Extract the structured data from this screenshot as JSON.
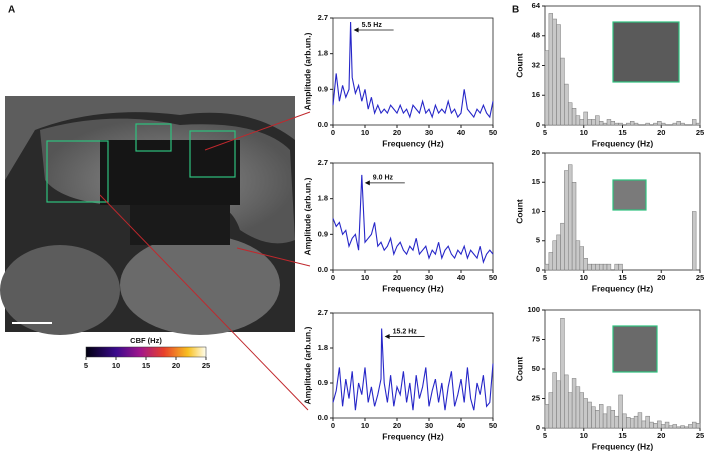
{
  "panels": [
    "A",
    "B"
  ],
  "colorbar": {
    "label": "CBF (Hz)",
    "lim": [
      5,
      25
    ],
    "ticks": [
      5,
      10,
      15,
      20,
      25
    ]
  },
  "chart_data": [
    {
      "type": "line",
      "xlabel": "Frequency (Hz)",
      "ylabel": "Amplitude (arb.un.)",
      "color": "#2626c8",
      "annotation": "5.5 Hz",
      "xlim": [
        0,
        50
      ],
      "xticks": [
        0,
        10,
        20,
        30,
        40,
        50
      ],
      "ylim": [
        0,
        2.7
      ],
      "yticks": [
        {
          "value": 0,
          "label": "0.0"
        },
        0.9,
        1.8,
        2.7
      ],
      "x": [
        0,
        1,
        2,
        3,
        4,
        5,
        5.5,
        6,
        7,
        8,
        9,
        10,
        11,
        12,
        13,
        14,
        15,
        16,
        17,
        18,
        19,
        20,
        21,
        22,
        23,
        24,
        25,
        26,
        27,
        28,
        29,
        30,
        31,
        32,
        33,
        34,
        35,
        36,
        37,
        38,
        39,
        40,
        41,
        42,
        43,
        44,
        45,
        46,
        47,
        48,
        49,
        50
      ],
      "values": [
        0.5,
        1.3,
        0.6,
        1.0,
        0.7,
        0.9,
        2.6,
        1.2,
        0.8,
        1.0,
        0.6,
        0.9,
        0.4,
        0.7,
        0.3,
        0.5,
        0.3,
        0.4,
        0.3,
        0.5,
        0.4,
        0.3,
        0.5,
        0.3,
        0.4,
        0.2,
        0.5,
        0.4,
        0.3,
        0.6,
        0.3,
        0.4,
        0.2,
        0.5,
        0.3,
        0.4,
        0.3,
        0.6,
        0.3,
        0.4,
        0.2,
        0.3,
        0.9,
        0.4,
        0.3,
        0.2,
        0.4,
        0.3,
        0.5,
        0.3,
        0.2,
        0.6
      ]
    },
    {
      "type": "line",
      "xlabel": "Frequency (Hz)",
      "ylabel": "Amplitude (arb.un.)",
      "color": "#2626c8",
      "annotation": "9.0 Hz",
      "xlim": [
        0,
        50
      ],
      "xticks": [
        0,
        10,
        20,
        30,
        40,
        50
      ],
      "ylim": [
        0,
        2.7
      ],
      "yticks": [
        {
          "value": 0,
          "label": "0.0"
        },
        0.9,
        1.8,
        2.7
      ],
      "x": [
        0,
        1,
        2,
        3,
        4,
        5,
        6,
        7,
        8,
        9,
        10,
        11,
        12,
        13,
        14,
        15,
        16,
        17,
        18,
        19,
        20,
        21,
        22,
        23,
        24,
        25,
        26,
        27,
        28,
        29,
        30,
        31,
        32,
        33,
        34,
        35,
        36,
        37,
        38,
        39,
        40,
        41,
        42,
        43,
        44,
        45,
        46,
        47,
        48,
        49,
        50
      ],
      "values": [
        1.3,
        1.1,
        1.2,
        0.9,
        1.0,
        0.6,
        0.8,
        0.9,
        0.5,
        2.4,
        0.7,
        0.8,
        0.9,
        1.2,
        0.6,
        0.7,
        0.5,
        0.6,
        0.8,
        0.4,
        0.6,
        0.7,
        0.5,
        0.4,
        0.6,
        0.5,
        0.8,
        0.4,
        0.5,
        0.6,
        0.3,
        0.5,
        0.4,
        0.7,
        0.3,
        0.5,
        0.6,
        0.4,
        0.3,
        0.5,
        0.4,
        0.6,
        0.3,
        0.5,
        0.4,
        0.3,
        0.6,
        0.2,
        0.4,
        0.5,
        0.4
      ]
    },
    {
      "type": "line",
      "xlabel": "Frequency (Hz)",
      "ylabel": "Amplitude (arb.un.)",
      "color": "#2626c8",
      "annotation": "15.2 Hz",
      "xlim": [
        0,
        50
      ],
      "xticks": [
        0,
        10,
        20,
        30,
        40,
        50
      ],
      "ylim": [
        0,
        2.7
      ],
      "yticks": [
        {
          "value": 0,
          "label": "0.0"
        },
        0.9,
        1.8,
        2.7
      ],
      "x": [
        0,
        1,
        2,
        3,
        4,
        5,
        6,
        7,
        8,
        9,
        10,
        11,
        12,
        13,
        14,
        15,
        15.2,
        16,
        17,
        18,
        19,
        20,
        21,
        22,
        23,
        24,
        25,
        26,
        27,
        28,
        29,
        30,
        31,
        32,
        33,
        34,
        35,
        36,
        37,
        38,
        39,
        40,
        41,
        42,
        43,
        44,
        45,
        46,
        47,
        48,
        49,
        50
      ],
      "values": [
        0.4,
        0.7,
        1.3,
        0.3,
        1.0,
        0.5,
        1.2,
        0.2,
        0.9,
        0.6,
        1.3,
        0.4,
        0.8,
        0.3,
        0.6,
        1.0,
        2.3,
        0.9,
        0.4,
        1.1,
        0.3,
        0.8,
        0.6,
        1.2,
        0.4,
        0.9,
        0.2,
        1.1,
        0.5,
        0.8,
        1.3,
        0.3,
        0.7,
        1.0,
        0.4,
        0.9,
        0.2,
        0.8,
        1.2,
        0.3,
        0.6,
        1.0,
        0.4,
        1.3,
        0.5,
        0.2,
        0.9,
        0.6,
        1.1,
        0.3,
        0.4,
        1.4
      ]
    },
    {
      "type": "histogram",
      "xlabel": "Frequency (Hz)",
      "ylabel": "Count",
      "color": "#c8c8c8",
      "xlim": [
        5,
        25
      ],
      "xticks": [
        5,
        10,
        15,
        20,
        25
      ],
      "ylim": [
        0,
        64
      ],
      "yticks": [
        0,
        16,
        32,
        48,
        64
      ],
      "bins": [
        5,
        5.5,
        6,
        6.5,
        7,
        7.5,
        8,
        8.5,
        9,
        9.5,
        10,
        10.5,
        11,
        11.5,
        12,
        12.5,
        13,
        13.5,
        14,
        14.5,
        15,
        15.5,
        16,
        16.5,
        17,
        17.5,
        18,
        18.5,
        19,
        19.5,
        20,
        20.5,
        21,
        21.5,
        22,
        22.5,
        23,
        23.5,
        24,
        24.5,
        25
      ],
      "values": [
        40,
        60,
        57,
        54,
        36,
        22,
        12,
        9,
        5,
        3,
        7,
        3,
        3,
        5,
        2,
        1,
        3,
        2,
        1,
        1,
        0,
        1,
        2,
        1,
        0,
        0,
        1,
        0,
        1,
        2,
        1,
        0,
        0,
        1,
        2,
        1,
        0,
        0,
        3,
        1
      ]
    },
    {
      "type": "histogram",
      "xlabel": "Frequency (Hz)",
      "ylabel": "Count",
      "color": "#c8c8c8",
      "xlim": [
        5,
        25
      ],
      "xticks": [
        5,
        10,
        15,
        20,
        25
      ],
      "ylim": [
        0,
        20
      ],
      "yticks": [
        0,
        5,
        10,
        15,
        20
      ],
      "bins": [
        5,
        5.5,
        6,
        6.5,
        7,
        7.5,
        8,
        8.5,
        9,
        9.5,
        10,
        10.5,
        11,
        11.5,
        12,
        12.5,
        13,
        13.5,
        14,
        14.5,
        15,
        15.5,
        16,
        16.5,
        17,
        17.5,
        18,
        18.5,
        19,
        19.5,
        20,
        20.5,
        21,
        21.5,
        22,
        22.5,
        23,
        23.5,
        24,
        24.5,
        25
      ],
      "values": [
        1,
        3,
        5,
        6,
        8,
        17,
        18,
        15,
        5,
        4,
        2,
        1,
        1,
        1,
        1,
        1,
        1,
        0,
        1,
        1,
        0,
        0,
        0,
        0,
        0,
        0,
        0,
        0,
        0,
        0,
        0,
        0,
        0,
        0,
        0,
        0,
        0,
        0,
        10,
        0
      ]
    },
    {
      "type": "histogram",
      "xlabel": "Frequency (Hz)",
      "ylabel": "Count",
      "color": "#c8c8c8",
      "xlim": [
        5,
        25
      ],
      "xticks": [
        5,
        10,
        15,
        20,
        25
      ],
      "ylim": [
        0,
        100
      ],
      "yticks": [
        0,
        25,
        50,
        75,
        100
      ],
      "bins": [
        5,
        5.5,
        6,
        6.5,
        7,
        7.5,
        8,
        8.5,
        9,
        9.5,
        10,
        10.5,
        11,
        11.5,
        12,
        12.5,
        13,
        13.5,
        14,
        14.5,
        15,
        15.5,
        16,
        16.5,
        17,
        17.5,
        18,
        18.5,
        19,
        19.5,
        20,
        20.5,
        21,
        21.5,
        22,
        22.5,
        23,
        23.5,
        24,
        24.5,
        25
      ],
      "values": [
        20,
        30,
        47,
        40,
        93,
        45,
        30,
        42,
        35,
        30,
        25,
        22,
        18,
        15,
        20,
        12,
        18,
        15,
        10,
        28,
        12,
        9,
        8,
        10,
        13,
        6,
        10,
        5,
        4,
        6,
        3,
        5,
        2,
        3,
        1,
        2,
        1,
        3,
        5,
        4
      ]
    }
  ]
}
